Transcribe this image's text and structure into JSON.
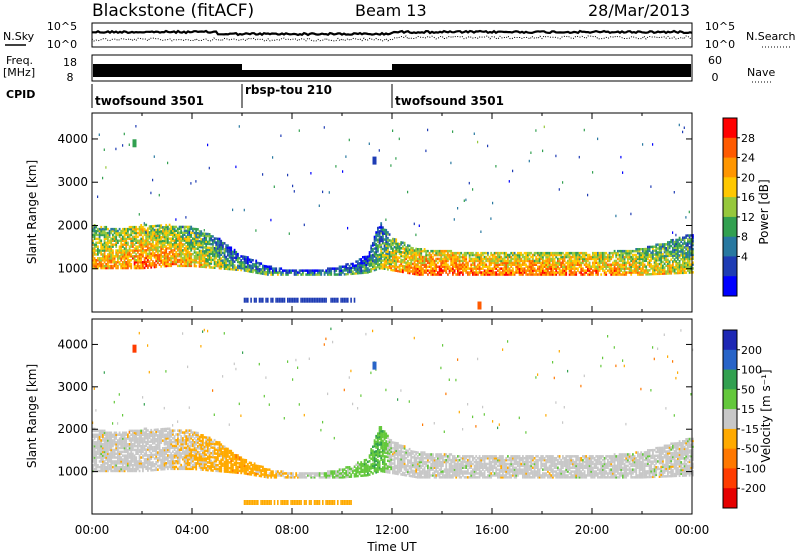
{
  "header": {
    "title": "Blackstone (fitACF)",
    "beam": "Beam 13",
    "date": "28/Mar/2013"
  },
  "top_panels": {
    "nsky_label": "N.Sky",
    "nsearch_label": "N.Search",
    "freq_label_1": "Freq.",
    "freq_label_2": "[MHz]",
    "nave_label": "Nave",
    "cpid_label": "CPID",
    "noise_ticks_left": [
      "10^5",
      "10^0"
    ],
    "noise_ticks_right": [
      "10^5",
      "10^0"
    ],
    "freq_ticks": [
      "18",
      "8"
    ],
    "nave_ticks": [
      "60",
      "0"
    ],
    "cpid_segments": [
      {
        "label": "twofsound 3501",
        "start_hour": 0,
        "end_hour": 6
      },
      {
        "label": "rbsp-tou 210",
        "start_hour": 6,
        "end_hour": 12
      },
      {
        "label": "twofsound 3501",
        "start_hour": 12,
        "end_hour": 24
      }
    ]
  },
  "x_axis": {
    "label": "Time UT",
    "ticks": [
      "00:00",
      "04:00",
      "08:00",
      "12:00",
      "16:00",
      "20:00",
      "00:00"
    ]
  },
  "y_axis": {
    "label": "Slant Range [km]",
    "ticks": [
      "1000",
      "2000",
      "3000",
      "4000"
    ]
  },
  "power_colorbar": {
    "label": "Power [dB]",
    "ticks": [
      "28",
      "24",
      "20",
      "16",
      "12",
      "8",
      "4"
    ],
    "colors": [
      "#ff0000",
      "#ff5a00",
      "#ff9600",
      "#ffc800",
      "#96c83c",
      "#32a050",
      "#2878a0",
      "#1e3cb4",
      "#0000ff"
    ]
  },
  "velocity_colorbar": {
    "label": "Velocity [m s⁻¹]",
    "ticks": [
      "200",
      "100",
      "50",
      "15",
      "-15",
      "-50",
      "-100",
      "-200"
    ],
    "colors": [
      "#1e28b4",
      "#2864c8",
      "#32a050",
      "#64c83c",
      "#c8c8c8",
      "#ffaa00",
      "#ff7800",
      "#ff3c00",
      "#e60000"
    ]
  },
  "chart_data": {
    "type": "heatmap",
    "title": "Blackstone (fitACF)  Beam 13  28/Mar/2013",
    "xlabel": "Time UT",
    "ylabel": "Slant Range [km]",
    "xlim_hours": [
      0,
      24
    ],
    "ylim_km": [
      0,
      4600
    ],
    "panels": [
      {
        "name": "Power",
        "unit": "dB",
        "clim": [
          0,
          32
        ],
        "echo_band": {
          "hours": [
            0,
            1,
            2,
            3,
            4,
            5,
            6,
            7,
            8,
            9,
            10,
            11,
            11.5,
            12,
            13,
            14,
            16,
            18,
            20,
            22,
            24
          ],
          "lower_km": [
            1000,
            1000,
            1000,
            1050,
            1050,
            1000,
            950,
            850,
            850,
            850,
            850,
            900,
            1000,
            950,
            850,
            850,
            850,
            850,
            850,
            850,
            900
          ],
          "upper_km": [
            2000,
            1900,
            2000,
            2000,
            1950,
            1700,
            1300,
            1050,
            950,
            950,
            1050,
            1300,
            2100,
            1700,
            1450,
            1400,
            1350,
            1350,
            1350,
            1450,
            1800
          ],
          "power_db": [
            22,
            24,
            26,
            24,
            22,
            18,
            14,
            14,
            12,
            12,
            12,
            14,
            16,
            22,
            26,
            28,
            26,
            26,
            26,
            22,
            18
          ]
        },
        "isolated_echoes": [
          {
            "hour": 1.7,
            "range_km": 3900,
            "power_db": 12
          },
          {
            "hour": 11.3,
            "range_km": 3500,
            "power_db": 4
          },
          {
            "hour": 15.5,
            "range_km": 150,
            "power_db": 26
          }
        ]
      },
      {
        "name": "Velocity",
        "unit": "m s-1",
        "clim": [
          -250,
          250
        ],
        "echo_band": {
          "hours": [
            0,
            1,
            2,
            3,
            4,
            5,
            6,
            7,
            8,
            9,
            10,
            11,
            11.5,
            12,
            13,
            14,
            16,
            18,
            20,
            22,
            24
          ],
          "lower_km": [
            1000,
            1000,
            1000,
            1050,
            1050,
            1000,
            950,
            850,
            850,
            850,
            850,
            900,
            1000,
            950,
            850,
            850,
            850,
            850,
            850,
            850,
            900
          ],
          "upper_km": [
            2000,
            1900,
            2000,
            2000,
            1950,
            1700,
            1300,
            1050,
            950,
            950,
            1050,
            1300,
            2100,
            1700,
            1450,
            1400,
            1350,
            1350,
            1350,
            1450,
            1800
          ],
          "velocity_ms": [
            0,
            0,
            0,
            -5,
            -30,
            -50,
            -60,
            -50,
            -20,
            10,
            40,
            60,
            80,
            0,
            0,
            0,
            0,
            0,
            0,
            0,
            0
          ]
        },
        "isolated_echoes": [
          {
            "hour": 1.7,
            "range_km": 3900,
            "velocity_ms": -150
          },
          {
            "hour": 11.3,
            "range_km": 3500,
            "velocity_ms": 180
          }
        ]
      }
    ]
  }
}
